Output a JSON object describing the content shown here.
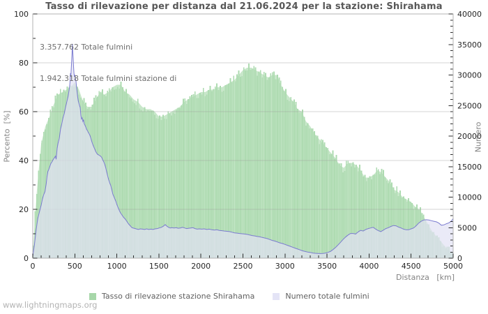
{
  "page": {
    "title": "Tasso di rilevazione per distanza dal 21.06.2024 per la stazione: Shirahama",
    "footer": "www.lightningmaps.org"
  },
  "annotations": {
    "line1": "3.357.762 Totale fulmini",
    "line2": "1.942.318 Totale fulmini stazione di"
  },
  "axes": {
    "left_label": "Percento  [%]",
    "right_label": "Numero",
    "x_label": "Distanza   [km]"
  },
  "legend": [
    {
      "label": "Tasso di rilevazione stazione Shirahama",
      "color": "#a7d7a9"
    },
    {
      "label": "Numero totale fulmini",
      "color": "#e4e4f6"
    }
  ],
  "colors": {
    "bar_green": "#aedbb1",
    "area_green_light": "#c8e7ca",
    "lightning_fill": "#e1e1f3",
    "lightning_line": "#7b7bd0",
    "grid": "#999999",
    "frame": "#b3b3b3",
    "tick": "#2a2a2a",
    "tick_label": "#262626"
  },
  "chart_data": {
    "type": "area",
    "title": "Tasso di rilevazione per distanza dal 21.06.2024 per la stazione: Shirahama",
    "xlabel": "Distanza [km]",
    "ylabel_left": "Percento [%]",
    "ylabel_right": "Numero",
    "x_range": [
      0,
      5000
    ],
    "y_left_range": [
      0,
      100
    ],
    "y_right_range": [
      0,
      40000
    ],
    "x_ticks": [
      0,
      500,
      1000,
      1500,
      2000,
      2500,
      3000,
      3500,
      4000,
      4500,
      5000
    ],
    "y_left_ticks": [
      0,
      20,
      40,
      60,
      80,
      100
    ],
    "y_right_ticks": [
      0,
      5000,
      10000,
      15000,
      20000,
      25000,
      30000,
      35000,
      40000
    ],
    "minor_tick_step": {
      "x": 100,
      "left": 10,
      "right": 1000
    },
    "grid": "horizontal",
    "legend_position": "bottom",
    "annotations": [
      "3.357.762 Totale fulmini",
      "1.942.318 Totale fulmini stazione di"
    ],
    "series": [
      {
        "name": "Tasso di rilevazione stazione Shirahama",
        "axis": "left",
        "style": "area-histogram",
        "unit": "%",
        "x_start": 0,
        "x_step": 50,
        "values": [
          2,
          28,
          47,
          54,
          58,
          63,
          67,
          68,
          69,
          70,
          72,
          69,
          64,
          62,
          62,
          65,
          68,
          67,
          68,
          70,
          71,
          71,
          68,
          67,
          65,
          64,
          62,
          61,
          61,
          60,
          58,
          58,
          59,
          60,
          61,
          62,
          64,
          65,
          66,
          67,
          68,
          68,
          69,
          69,
          70,
          70,
          71,
          72,
          73,
          75,
          77,
          78,
          78,
          77,
          76,
          75,
          74,
          75,
          75,
          71,
          68,
          66,
          64,
          61,
          60,
          56,
          54,
          51,
          49,
          47,
          45,
          43,
          41,
          38,
          37,
          39,
          39,
          38,
          36,
          33,
          33,
          34,
          36,
          35,
          33,
          31,
          28,
          27,
          25,
          24,
          23,
          21,
          20,
          17,
          14,
          11,
          9,
          7,
          5,
          3,
          2
        ]
      },
      {
        "name": "Numero totale fulmini",
        "axis": "right",
        "style": "line-area",
        "unit": "count",
        "points": [
          [
            0,
            300
          ],
          [
            20,
            2200
          ],
          [
            40,
            4600
          ],
          [
            60,
            6500
          ],
          [
            80,
            7600
          ],
          [
            100,
            8700
          ],
          [
            115,
            9700
          ],
          [
            130,
            10400
          ],
          [
            145,
            10900
          ],
          [
            160,
            12200
          ],
          [
            170,
            13400
          ],
          [
            180,
            14200
          ],
          [
            190,
            14500
          ],
          [
            200,
            14900
          ],
          [
            215,
            15500
          ],
          [
            230,
            15800
          ],
          [
            245,
            16200
          ],
          [
            260,
            16500
          ],
          [
            270,
            16700
          ],
          [
            278,
            16200
          ],
          [
            290,
            18000
          ],
          [
            300,
            18800
          ],
          [
            315,
            19600
          ],
          [
            330,
            21100
          ],
          [
            345,
            22000
          ],
          [
            360,
            23000
          ],
          [
            375,
            23700
          ],
          [
            390,
            24700
          ],
          [
            405,
            25600
          ],
          [
            420,
            26500
          ],
          [
            435,
            27800
          ],
          [
            443,
            28800
          ],
          [
            448,
            30300
          ],
          [
            453,
            29700
          ],
          [
            458,
            31100
          ],
          [
            463,
            32300
          ],
          [
            467,
            33500
          ],
          [
            471,
            35100
          ],
          [
            475,
            34000
          ],
          [
            480,
            32800
          ],
          [
            485,
            31400
          ],
          [
            490,
            30300
          ],
          [
            496,
            29700
          ],
          [
            502,
            30000
          ],
          [
            508,
            29400
          ],
          [
            514,
            29000
          ],
          [
            520,
            28100
          ],
          [
            527,
            27200
          ],
          [
            534,
            26400
          ],
          [
            541,
            25800
          ],
          [
            548,
            25400
          ],
          [
            556,
            25000
          ],
          [
            564,
            24700
          ],
          [
            572,
            23400
          ],
          [
            580,
            22800
          ],
          [
            588,
            23000
          ],
          [
            596,
            22400
          ],
          [
            604,
            22700
          ],
          [
            612,
            22000
          ],
          [
            620,
            21800
          ],
          [
            630,
            21500
          ],
          [
            640,
            21100
          ],
          [
            650,
            20900
          ],
          [
            660,
            20600
          ],
          [
            670,
            20400
          ],
          [
            680,
            20100
          ],
          [
            690,
            19700
          ],
          [
            700,
            19200
          ],
          [
            712,
            18700
          ],
          [
            724,
            18300
          ],
          [
            736,
            17900
          ],
          [
            748,
            17500
          ],
          [
            760,
            17200
          ],
          [
            772,
            17000
          ],
          [
            784,
            16900
          ],
          [
            796,
            16800
          ],
          [
            808,
            16700
          ],
          [
            820,
            16500
          ],
          [
            832,
            16100
          ],
          [
            844,
            15800
          ],
          [
            856,
            15400
          ],
          [
            868,
            14800
          ],
          [
            880,
            14100
          ],
          [
            892,
            13400
          ],
          [
            904,
            12800
          ],
          [
            916,
            12300
          ],
          [
            928,
            11900
          ],
          [
            940,
            11200
          ],
          [
            952,
            10500
          ],
          [
            964,
            10100
          ],
          [
            976,
            9700
          ],
          [
            988,
            9300
          ],
          [
            1000,
            8800
          ],
          [
            1015,
            8300
          ],
          [
            1030,
            7800
          ],
          [
            1045,
            7400
          ],
          [
            1060,
            7100
          ],
          [
            1080,
            6700
          ],
          [
            1100,
            6400
          ],
          [
            1120,
            6000
          ],
          [
            1140,
            5600
          ],
          [
            1160,
            5300
          ],
          [
            1180,
            5000
          ],
          [
            1205,
            4900
          ],
          [
            1230,
            4800
          ],
          [
            1255,
            4700
          ],
          [
            1280,
            4800
          ],
          [
            1305,
            4750
          ],
          [
            1330,
            4700
          ],
          [
            1355,
            4800
          ],
          [
            1380,
            4700
          ],
          [
            1405,
            4750
          ],
          [
            1430,
            4700
          ],
          [
            1455,
            4800
          ],
          [
            1480,
            4850
          ],
          [
            1505,
            4950
          ],
          [
            1530,
            5050
          ],
          [
            1555,
            5250
          ],
          [
            1575,
            5500
          ],
          [
            1595,
            5250
          ],
          [
            1615,
            5050
          ],
          [
            1635,
            4950
          ],
          [
            1655,
            5000
          ],
          [
            1680,
            4950
          ],
          [
            1705,
            5000
          ],
          [
            1730,
            4900
          ],
          [
            1755,
            4950
          ],
          [
            1780,
            5050
          ],
          [
            1805,
            4950
          ],
          [
            1830,
            4850
          ],
          [
            1855,
            4900
          ],
          [
            1880,
            4950
          ],
          [
            1905,
            5000
          ],
          [
            1930,
            4850
          ],
          [
            1955,
            4750
          ],
          [
            1980,
            4800
          ],
          [
            2010,
            4750
          ],
          [
            2040,
            4800
          ],
          [
            2070,
            4700
          ],
          [
            2100,
            4750
          ],
          [
            2130,
            4650
          ],
          [
            2160,
            4600
          ],
          [
            2190,
            4650
          ],
          [
            2220,
            4550
          ],
          [
            2250,
            4500
          ],
          [
            2280,
            4450
          ],
          [
            2310,
            4400
          ],
          [
            2340,
            4350
          ],
          [
            2370,
            4250
          ],
          [
            2400,
            4150
          ],
          [
            2430,
            4100
          ],
          [
            2460,
            4050
          ],
          [
            2490,
            4000
          ],
          [
            2520,
            3950
          ],
          [
            2550,
            3900
          ],
          [
            2580,
            3800
          ],
          [
            2610,
            3700
          ],
          [
            2640,
            3650
          ],
          [
            2670,
            3550
          ],
          [
            2700,
            3500
          ],
          [
            2730,
            3400
          ],
          [
            2760,
            3300
          ],
          [
            2790,
            3200
          ],
          [
            2820,
            3050
          ],
          [
            2850,
            2900
          ],
          [
            2880,
            2800
          ],
          [
            2910,
            2650
          ],
          [
            2940,
            2500
          ],
          [
            2970,
            2400
          ],
          [
            3000,
            2250
          ],
          [
            3030,
            2100
          ],
          [
            3060,
            1950
          ],
          [
            3090,
            1800
          ],
          [
            3120,
            1650
          ],
          [
            3150,
            1500
          ],
          [
            3180,
            1350
          ],
          [
            3210,
            1200
          ],
          [
            3240,
            1100
          ],
          [
            3270,
            1000
          ],
          [
            3300,
            950
          ],
          [
            3330,
            850
          ],
          [
            3360,
            800
          ],
          [
            3390,
            780
          ],
          [
            3420,
            750
          ],
          [
            3450,
            780
          ],
          [
            3480,
            830
          ],
          [
            3510,
            950
          ],
          [
            3540,
            1100
          ],
          [
            3570,
            1400
          ],
          [
            3600,
            1750
          ],
          [
            3630,
            2150
          ],
          [
            3660,
            2600
          ],
          [
            3690,
            3050
          ],
          [
            3720,
            3450
          ],
          [
            3750,
            3800
          ],
          [
            3780,
            4050
          ],
          [
            3810,
            4050
          ],
          [
            3840,
            3950
          ],
          [
            3870,
            4300
          ],
          [
            3900,
            4550
          ],
          [
            3930,
            4450
          ],
          [
            3960,
            4700
          ],
          [
            3990,
            4850
          ],
          [
            4020,
            4950
          ],
          [
            4050,
            5050
          ],
          [
            4080,
            4750
          ],
          [
            4110,
            4500
          ],
          [
            4140,
            4350
          ],
          [
            4170,
            4600
          ],
          [
            4200,
            4850
          ],
          [
            4230,
            5000
          ],
          [
            4260,
            5200
          ],
          [
            4290,
            5350
          ],
          [
            4320,
            5300
          ],
          [
            4350,
            5100
          ],
          [
            4380,
            4950
          ],
          [
            4410,
            4750
          ],
          [
            4440,
            4650
          ],
          [
            4470,
            4650
          ],
          [
            4500,
            4800
          ],
          [
            4530,
            4950
          ],
          [
            4560,
            5300
          ],
          [
            4590,
            5750
          ],
          [
            4620,
            6050
          ],
          [
            4650,
            6250
          ],
          [
            4680,
            6300
          ],
          [
            4710,
            6250
          ],
          [
            4740,
            6150
          ],
          [
            4770,
            6050
          ],
          [
            4800,
            5950
          ],
          [
            4830,
            5750
          ],
          [
            4860,
            5400
          ],
          [
            4890,
            5450
          ],
          [
            4920,
            5650
          ],
          [
            4950,
            5800
          ],
          [
            4980,
            6100
          ],
          [
            5000,
            6500
          ]
        ]
      }
    ]
  }
}
